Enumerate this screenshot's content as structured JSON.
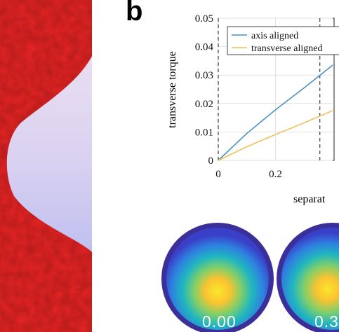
{
  "figure": {
    "panel_letter": "b",
    "colormap_values": [
      "0.00",
      "0.3"
    ]
  },
  "chart_data": {
    "type": "line",
    "xlabel": "separat",
    "ylabel": "transverse torque",
    "xlim": [
      0,
      0.4
    ],
    "ylim": [
      0,
      0.05
    ],
    "x_ticks": [
      "0",
      "0.2"
    ],
    "y_ticks": [
      "0",
      "0.01",
      "0.02",
      "0.03",
      "0.04",
      "0.05"
    ],
    "grid": true,
    "legend_position": "top-right",
    "vertical_dashed_lines_x": [
      0,
      0.355
    ],
    "series": [
      {
        "name": "axis aligned",
        "color": "#4a90c8",
        "x": [
          0,
          0.1,
          0.2,
          0.3,
          0.4
        ],
        "y": [
          0,
          0.0095,
          0.0178,
          0.0255,
          0.0335
        ]
      },
      {
        "name": "transverse aligned",
        "color": "#f0c05a",
        "x": [
          0,
          0.1,
          0.2,
          0.3,
          0.4
        ],
        "y": [
          0,
          0.0048,
          0.0091,
          0.0132,
          0.0175
        ]
      }
    ]
  }
}
